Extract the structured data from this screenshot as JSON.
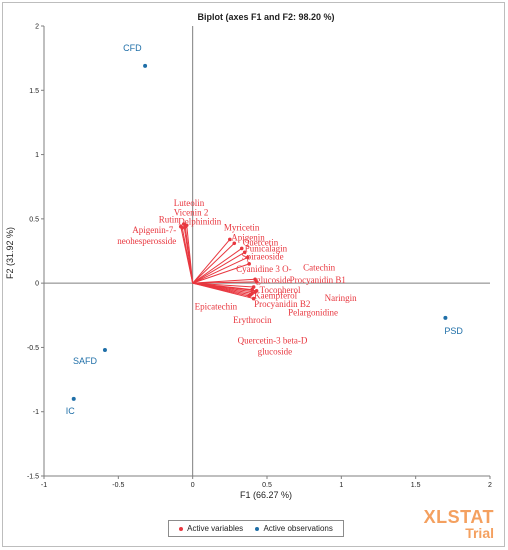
{
  "chart_data": {
    "type": "scatter",
    "title": "Biplot (axes F1 and F2: 98.20 %)",
    "xlabel": "F1 (66.27 %)",
    "ylabel": "F2 (31.92 %)",
    "xlim": [
      -1,
      2
    ],
    "ylim": [
      -1.5,
      2
    ],
    "xticks": [
      -1,
      -0.5,
      0,
      0.5,
      1,
      1.5,
      2
    ],
    "yticks": [
      -1.5,
      -1,
      -0.5,
      0,
      0.5,
      1,
      1.5,
      2
    ],
    "xtick_labels": [
      "-1",
      "-0.5",
      "0",
      "0.5",
      "1",
      "1.5",
      "2"
    ],
    "ytick_labels": [
      "-1.5",
      "-1",
      "-0.5",
      "0",
      "0.5",
      "1",
      "1.5",
      "2"
    ],
    "legend_position": "bottom",
    "series": [
      {
        "name": "Active variables",
        "color": "#e8373f",
        "kind": "vectors",
        "points": [
          {
            "label": "Rutin",
            "x": -0.08,
            "y": 0.44
          },
          {
            "label": "Luteolin",
            "x": -0.06,
            "y": 0.46
          },
          {
            "label": "Vicenin 2",
            "x": -0.04,
            "y": 0.45
          },
          {
            "label": "Delphinidin",
            "x": -0.05,
            "y": 0.44
          },
          {
            "label": "Apigenin-7-neohesperosside",
            "x": -0.07,
            "y": 0.43
          },
          {
            "label": "Myricetin",
            "x": 0.25,
            "y": 0.34
          },
          {
            "label": "Apigenin",
            "x": 0.28,
            "y": 0.31
          },
          {
            "label": "Quercetin",
            "x": 0.33,
            "y": 0.27
          },
          {
            "label": "Punicalagin",
            "x": 0.35,
            "y": 0.24
          },
          {
            "label": "Spiraeoside",
            "x": 0.37,
            "y": 0.2
          },
          {
            "label": "Cyanidine 3 O-glucoside",
            "x": 0.38,
            "y": 0.15
          },
          {
            "label": "Catechin",
            "x": 0.42,
            "y": 0.03
          },
          {
            "label": "Procyanidin B1",
            "x": 0.43,
            "y": 0.01
          },
          {
            "label": "Tocopherol",
            "x": 0.41,
            "y": -0.03
          },
          {
            "label": "Kaempferol",
            "x": 0.4,
            "y": -0.05
          },
          {
            "label": "Naringin",
            "x": 0.43,
            "y": -0.06
          },
          {
            "label": "Procyanidin B2",
            "x": 0.42,
            "y": -0.07
          },
          {
            "label": "Pelargonidine",
            "x": 0.4,
            "y": -0.08
          },
          {
            "label": "Epicatechin",
            "x": 0.39,
            "y": -0.09
          },
          {
            "label": "Erythrocin",
            "x": 0.38,
            "y": -0.1
          },
          {
            "label": "Quercetin-3 beta-D glucoside",
            "x": 0.41,
            "y": -0.12
          }
        ]
      },
      {
        "name": "Active observations",
        "color": "#1f6fa8",
        "kind": "points",
        "points": [
          {
            "label": "CFD",
            "x": -0.32,
            "y": 1.69
          },
          {
            "label": "PSD",
            "x": 1.7,
            "y": -0.27
          },
          {
            "label": "SAFD",
            "x": -0.59,
            "y": -0.52
          },
          {
            "label": "IC",
            "x": -0.8,
            "y": -0.9
          }
        ]
      }
    ]
  },
  "watermark": {
    "brand": "XLSTAT",
    "sub": "Trial",
    "color": "#f4a05f"
  }
}
